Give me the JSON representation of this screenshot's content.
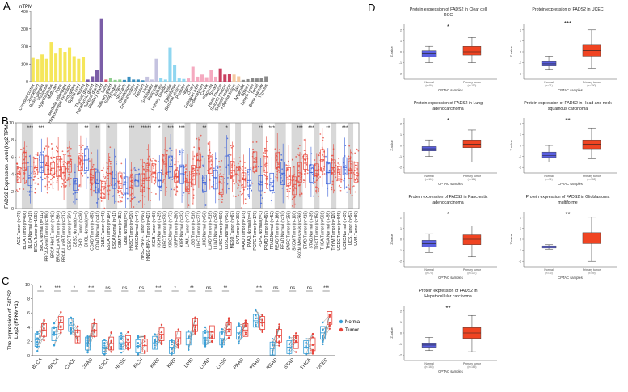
{
  "figure": {
    "panel_letters": [
      "A",
      "B",
      "C",
      "D"
    ],
    "colors": {
      "normal_box": "#5a5fe0",
      "tumor_box": "#f04422",
      "normal_dot": "#3aa0d8",
      "tumor_dot": "#e8453c",
      "b_tumor": "#e8483c",
      "b_normal": "#3a5fd8",
      "b_shade": "#d8d8d8"
    }
  },
  "chart_data": [
    {
      "id": "A",
      "type": "bar",
      "ylabel": "nTPM",
      "ylim": [
        0,
        400
      ],
      "yticks": [
        0,
        100,
        200,
        300,
        400
      ],
      "categories": [
        "Cerebral cortex",
        "Cerebellum",
        "Basal ganglia",
        "Thalamus",
        "Hypothalamus",
        "Midbrain",
        "Pons",
        "Medulla oblongata",
        "Hippocampal formation",
        "Amygdala",
        "Spinal cord",
        "Retina",
        "Thyroid gland",
        "Parathyroid gland",
        "Adrenal gland",
        "Pituitary gland",
        "Lung",
        "Salivary gland",
        "Esophagus",
        "Tongue",
        "Stomach",
        "Duodenum",
        "Small intestine",
        "Colon",
        "Rectum",
        "Liver",
        "Gallbladder",
        "Pancreas",
        "Kidney",
        "Urinary bladder",
        "Testis",
        "Epididymis",
        "Seminal vesicle",
        "Prostate",
        "Vagina",
        "Ovary",
        "Fallopian tube",
        "Endometrium",
        "Cervix",
        "Placenta",
        "Breast",
        "Heart muscle",
        "Smooth muscle",
        "Skeletal muscle",
        "Adipose tissue",
        "Skin",
        "Appendix",
        "Spleen",
        "Lymph node",
        "Tonsil",
        "Bone marrow",
        "Thymus"
      ],
      "values": [
        135,
        128,
        155,
        130,
        225,
        160,
        190,
        170,
        195,
        145,
        130,
        140,
        12,
        30,
        65,
        360,
        12,
        22,
        10,
        12,
        10,
        28,
        12,
        12,
        8,
        28,
        12,
        130,
        20,
        12,
        195,
        95,
        18,
        15,
        18,
        85,
        28,
        40,
        25,
        65,
        28,
        75,
        40,
        45,
        40,
        30,
        10,
        14,
        22,
        18,
        22,
        30
      ],
      "colors": [
        "#f5e65a",
        "#f5e65a",
        "#f5e65a",
        "#f5e65a",
        "#f5e65a",
        "#f5e65a",
        "#f5e65a",
        "#f5e65a",
        "#f5e65a",
        "#f5e65a",
        "#f5e65a",
        "#f5e65a",
        "#7b5ea7",
        "#7b5ea7",
        "#7b5ea7",
        "#7b5ea7",
        "#e85c6a",
        "#8fcf8f",
        "#8fcf8f",
        "#8fcf8f",
        "#3a8fbf",
        "#3a8fbf",
        "#3a8fbf",
        "#3a8fbf",
        "#3a8fbf",
        "#c5c3e0",
        "#c5c3e0",
        "#c5c3e0",
        "#8fd6f0",
        "#8fd6f0",
        "#8fd6f0",
        "#8fd6f0",
        "#8fd6f0",
        "#8fd6f0",
        "#f5aac0",
        "#f5aac0",
        "#f5aac0",
        "#f5aac0",
        "#f5aac0",
        "#f5aac0",
        "#f5aac0",
        "#c94060",
        "#c94060",
        "#c94060",
        "#f5c8a0",
        "#f5c8a0",
        "#8a8a8a",
        "#8a8a8a",
        "#8a8a8a",
        "#8a8a8a",
        "#8a8a8a",
        "#8a8a8a"
      ]
    },
    {
      "id": "B",
      "type": "box",
      "ylabel": "FADS2 Expression Level (log2 TPM)",
      "ylim": [
        0,
        10
      ],
      "yticks": [
        0,
        2,
        4,
        6,
        8,
        10
      ],
      "categories": [
        "ACC.Tumor (n=79)",
        "BLCA.Tumor (n=408)",
        "BLCA.Normal (n=19)",
        "BRCA.Tumor (n=1093)",
        "BRCA.Normal (n=112)",
        "BRCA-Basal.Tumor (n=190)",
        "BRCA-Her2.Tumor (n=82)",
        "BRCA-LumA.Tumor (n=564)",
        "BRCA-LumB.Tumor (n=217)",
        "CESC.Tumor (n=304)",
        "CESC.Normal (n=3)",
        "CHOL.Tumor (n=36)",
        "CHOL.Normal (n=9)",
        "COAD.Tumor (n=457)",
        "COAD.Normal (n=41)",
        "DLBC.Tumor (n=48)",
        "ESCA.Tumor (n=184)",
        "ESCA.Normal (n=11)",
        "GBM.Tumor (n=153)",
        "GBM.Normal (n=5)",
        "HNSC.Tumor (n=520)",
        "HNSC.Normal (n=44)",
        "HNSC-HPV+.Tumor (n=97)",
        "HNSC-HPV-.Tumor (n=421)",
        "KICH.Tumor (n=66)",
        "KICH.Normal (n=25)",
        "KIRC.Tumor (n=533)",
        "KIRC.Normal (n=72)",
        "KIRP.Tumor (n=290)",
        "KIRP.Normal (n=32)",
        "LAML.Tumor (n=73)",
        "LGG.Tumor (n=516)",
        "LIHC.Tumor (n=371)",
        "LIHC.Normal (n=50)",
        "LUAD.Tumor (n=515)",
        "LUAD.Normal (n=59)",
        "LUSC.Tumor (n=501)",
        "LUSC.Normal (n=51)",
        "MESO.Tumor (n=87)",
        "OV.Tumor (n=303)",
        "PAAD.Tumor (n=178)",
        "PAAD.Normal (n=4)",
        "PCPG.Tumor (n=179)",
        "PCPG.Normal (n=3)",
        "PRAD.Tumor (n=497)",
        "PRAD.Normal (n=52)",
        "READ.Tumor (n=166)",
        "READ.Normal (n=10)",
        "SARC.Tumor (n=259)",
        "SKCM.Tumor (n=103)",
        "SKCM.Metastasis (n=368)",
        "STAD.Tumor (n=415)",
        "STAD.Normal (n=35)",
        "TGCT.Tumor (n=150)",
        "THCA.Tumor (n=501)",
        "THCA.Normal (n=59)",
        "THYM.Tumor (n=120)",
        "UCEC.Tumor (n=545)",
        "UCEC.Normal (n=35)",
        "UCS.Tumor (n=57)",
        "UVM.Tumor (n=80)"
      ],
      "significance": [
        "",
        "",
        "***",
        "",
        "***",
        "",
        "",
        "",
        "",
        "",
        "",
        "",
        "**",
        "",
        "**",
        "",
        "*",
        "",
        "",
        "",
        "***",
        "",
        "**",
        "***",
        "",
        "*",
        "",
        "***",
        "",
        "***",
        "",
        "",
        "",
        "**",
        "",
        "",
        "",
        "*",
        "",
        "",
        "",
        "",
        "",
        "**",
        "",
        "***",
        "",
        "",
        "",
        "",
        "***",
        "",
        "***",
        "",
        "",
        "**",
        "",
        "",
        "***",
        "",
        ""
      ]
    },
    {
      "id": "C",
      "type": "paired-box",
      "ylabel": "The expression of FADS2\nLog2 (FPKM+1)",
      "ylim": [
        0,
        10
      ],
      "yticks": [
        0,
        2,
        4,
        6,
        8,
        10
      ],
      "legend": [
        "Normal",
        "Tumor"
      ],
      "categories": [
        "BLCA",
        "BRCA",
        "CHOL",
        "COAD",
        "ESCA",
        "HNSC",
        "KICH",
        "KIRC",
        "KIRP",
        "LIHC",
        "LUAD",
        "LUSC",
        "PAAD",
        "PRAD",
        "READ",
        "STAD",
        "THCA",
        "UCEC"
      ],
      "significance": [
        "*",
        "***",
        "*",
        "***",
        "ns",
        "ns",
        "ns",
        "***",
        "*",
        "**",
        "ns",
        "**",
        "",
        "***",
        "ns",
        "ns",
        "ns",
        "***"
      ],
      "normal_median": [
        2.2,
        3.0,
        4.3,
        1.7,
        1.2,
        1.8,
        1.3,
        1.8,
        1.2,
        2.4,
        2.5,
        2.4,
        3.2,
        4.9,
        1.0,
        1.2,
        1.2,
        3.2
      ],
      "tumor_median": [
        3.6,
        4.6,
        2.7,
        3.6,
        1.7,
        1.9,
        1.4,
        3.0,
        2.5,
        4.3,
        3.3,
        3.7,
        3.6,
        4.6,
        2.8,
        1.9,
        1.6,
        5.3
      ],
      "labels": {
        "Normal": "Normal",
        "Tumor": "Tumor"
      }
    },
    {
      "id": "D",
      "type": "box-grid",
      "plots": [
        {
          "title": "Protein expression of FADS2 in Clear cell RCC",
          "sig": "*",
          "xlabel": "CPTAC samples",
          "ylabel": "Z-value",
          "normal_label": "Normal",
          "normal_n": "(n=84)",
          "tumor_label": "Primary tumor",
          "tumor_n": "(n=110)",
          "normal": [
            -1.0,
            -0.5,
            -0.2,
            0.1,
            0.5
          ],
          "tumor": [
            -1.0,
            -0.3,
            0.0,
            0.5,
            1.3
          ]
        },
        {
          "title": "Protein expression of FADS2 in UCEC",
          "sig": "***",
          "xlabel": "CPTAC samples",
          "ylabel": "Z-value",
          "normal_label": "Normal",
          "normal_n": "(n=31)",
          "tumor_label": "Primary tumor",
          "tumor_n": "(n=100)",
          "normal": [
            -1.6,
            -1.3,
            -1.1,
            -0.9,
            -0.4
          ],
          "tumor": [
            -1.5,
            -0.4,
            0.1,
            0.6,
            2.0
          ]
        },
        {
          "title": "Protein expression of FADS2 in Lung adenocarcinoma",
          "sig": "*",
          "xlabel": "CPTAC samples",
          "ylabel": "Z-value",
          "normal_label": "Normal",
          "normal_n": "(n=111)",
          "tumor_label": "Primary tumor",
          "tumor_n": "(n=111)",
          "normal": [
            -1.0,
            -0.5,
            -0.3,
            -0.1,
            0.5
          ],
          "tumor": [
            -1.5,
            -0.2,
            0.1,
            0.5,
            1.4
          ]
        },
        {
          "title": "Protein expression of FADS2 in Head and neck squamous carcinoma",
          "sig": "**",
          "xlabel": "CPTAC samples",
          "ylabel": "Z-value",
          "normal_label": "Normal",
          "normal_n": "(n=71)",
          "tumor_label": "Primary tumor",
          "tumor_n": "(n=108)",
          "normal": [
            -1.5,
            -1.1,
            -0.9,
            -0.6,
            0.0
          ],
          "tumor": [
            -1.2,
            -0.3,
            0.1,
            0.5,
            1.6
          ]
        },
        {
          "title": "Protein expression of FADS2 in Pancreatic adenocarcinoma",
          "sig": "*",
          "xlabel": "CPTAC samples",
          "ylabel": "Z-value",
          "normal_label": "Normal",
          "normal_n": "(n=74)",
          "tumor_label": "Primary tumor",
          "tumor_n": "(n=137)",
          "normal": [
            -1.2,
            -0.7,
            -0.4,
            -0.1,
            0.5
          ],
          "tumor": [
            -1.6,
            -0.5,
            0.0,
            0.4,
            1.2
          ]
        },
        {
          "title": "Protein expression of FADS2 in Glioblastoma multiforme",
          "sig": "**",
          "xlabel": "CPTAC samples",
          "ylabel": "Z-value",
          "normal_label": "Normal",
          "normal_n": "(n=10)",
          "tumor_label": "Primary tumor",
          "tumor_n": "(n=99)",
          "normal": [
            -0.9,
            -0.8,
            -0.7,
            -0.6,
            -0.5
          ],
          "tumor": [
            -2.0,
            -0.4,
            0.1,
            0.6,
            2.0
          ]
        },
        {
          "title": "Protein expression of FADS2 in Hepatocellular carcinoma",
          "sig": "**",
          "xlabel": "CPTAC samples",
          "ylabel": "Z-value",
          "normal_label": "Normal",
          "normal_n": "(n=165)",
          "tumor_label": "Primary tumor",
          "tumor_n": "(n=165)",
          "normal": [
            -1.6,
            -1.3,
            -1.1,
            -0.9,
            -0.4
          ],
          "tumor": [
            -1.7,
            -0.5,
            0.0,
            0.5,
            1.6
          ]
        }
      ]
    }
  ]
}
